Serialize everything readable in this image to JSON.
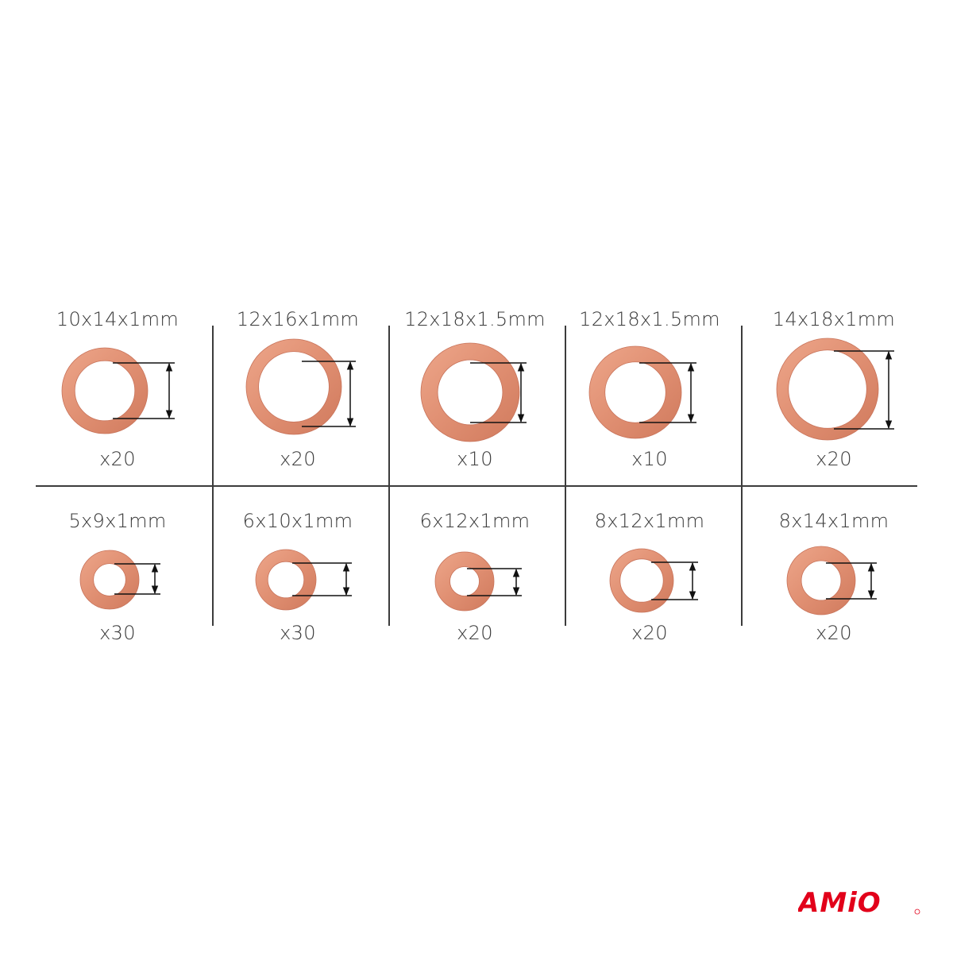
{
  "colors": {
    "copper": "#e59577",
    "copper_dark": "#c8735a",
    "line": "#3c3c3c",
    "brand": "#e2001a"
  },
  "rows": [
    [
      {
        "size": "10x14x1mm",
        "count": "x20"
      },
      {
        "size": "12x16x1mm",
        "count": "x20"
      },
      {
        "size": "12x18x1.5mm",
        "count": "x10"
      },
      {
        "size": "12x18x1.5mm",
        "count": "x10"
      },
      {
        "size": "14x18x1mm",
        "count": "x20"
      }
    ],
    [
      {
        "size": "5x9x1mm",
        "count": "x30"
      },
      {
        "size": "6x10x1mm",
        "count": "x30"
      },
      {
        "size": "6x12x1mm",
        "count": "x20"
      },
      {
        "size": "8x12x1mm",
        "count": "x20"
      },
      {
        "size": "8x14x1mm",
        "count": "x20"
      }
    ]
  ],
  "logo": {
    "text": "AMiO"
  }
}
